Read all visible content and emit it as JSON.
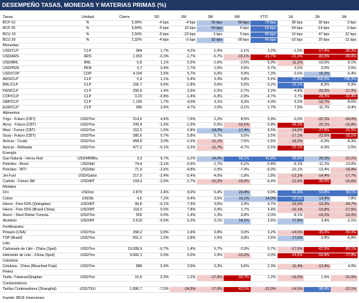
{
  "title": "DESEMPEÑO TASAS, MONEDAS Y MATERIAS PRIMAS (%)",
  "headers": [
    "",
    "Unidad",
    "Cierre",
    "5D",
    "1M",
    "3M",
    "6M",
    "YTD",
    "1A",
    "2A",
    "3A"
  ],
  "source": "Fuente: BICE Inversiones",
  "colors": {
    "title_bg": "#1f3864",
    "pos_strong": "#4472c4",
    "pos_soft": "#b4c6e7",
    "neg_strong": "#c00000",
    "neg_soft": "#f4cccc"
  },
  "sections": [
    {
      "name": "Tasas",
      "rows": [
        {
          "name": "BCP 10",
          "unit": "%",
          "close": "5,99%",
          "v": [
            "-4 bps",
            "-4 bps",
            "35 bps",
            "90 bps",
            "79 bps",
            "38 bps",
            "39 bps",
            "3 bps"
          ],
          "c": [
            "",
            "",
            "ps",
            "ps",
            "pS",
            "",
            "",
            ""
          ]
        },
        {
          "name": "BCP 20",
          "unit": "%",
          "close": "5,84%",
          "v": [
            "-5 bps",
            "10 bps",
            "64 bps",
            "6 bps",
            "60 bps",
            "64 bps",
            "-14 bps",
            "-3 bps"
          ],
          "c": [
            "",
            "",
            "ps",
            "",
            "pS",
            "",
            "",
            ""
          ]
        },
        {
          "name": "BCU 10",
          "unit": "%",
          "close": "2,50%",
          "v": [
            "-5 bps",
            "-23 bps",
            "3 bps",
            "5 bps",
            "66 bps",
            "10 bps",
            "47 bps",
            "22 bps"
          ],
          "c": [
            "",
            "",
            "",
            "",
            "pS",
            "",
            "",
            ""
          ]
        },
        {
          "name": "BCU 20",
          "unit": "%",
          "close": "2,32%",
          "v": [
            "-4 bps",
            "-5 bps",
            "32 bps",
            "-28 bps",
            "46 bps",
            "-10 bps",
            "29 bps",
            "-11 bps"
          ],
          "c": [
            "",
            "",
            "ps",
            "",
            "pS",
            "",
            "",
            ""
          ]
        }
      ]
    },
    {
      "name": "Monedas",
      "rows": [
        {
          "name": "USD/CLP",
          "unit": "CLP",
          "close": "964",
          "v": [
            "1,7%",
            "4,2%",
            "-1,6%",
            "-2,1%",
            "3,2%",
            "-1,0%",
            "-17,4%",
            "-36,3%"
          ],
          "c": [
            "",
            "",
            "",
            "",
            "",
            "",
            "nS",
            "nS"
          ]
        },
        {
          "name": "USD/ARS",
          "unit": "ARS",
          "close": "1.053",
          "v": [
            "-0,3%",
            "-1,7%",
            "-5,7%",
            "-15,1%",
            "-21,7%",
            "-21,2%",
            "-82,0%",
            "-90,0%"
          ],
          "c": [
            "",
            "",
            "",
            "ns",
            "nS",
            "nS",
            "nS",
            "nS"
          ]
        },
        {
          "name": "USD/BRL",
          "unit": "BRL",
          "close": "5,8",
          "v": [
            "1,1%",
            "5,5%",
            "-1,6%",
            "-2,6%",
            "6,9%",
            "-11,2%",
            "-10,0%",
            "-9,1%"
          ],
          "c": [
            "",
            "",
            "",
            "",
            "",
            "ns",
            "",
            ""
          ]
        },
        {
          "name": "USD/PEN",
          "unit": "PEN",
          "close": "3,7",
          "v": [
            "0,4%",
            "1,7%",
            "1,0%",
            "0,6%",
            "0,7%",
            "3,5%",
            "3,5%",
            "3,5%"
          ],
          "c": [
            "",
            "",
            "",
            "",
            "",
            "",
            "",
            ""
          ]
        },
        {
          "name": "USD/COP",
          "unit": "COP",
          "close": "4.104",
          "v": [
            "2,6%",
            "5,7%",
            "5,0%",
            "0,9%",
            "7,3%",
            "-3,6%",
            "15,2%",
            "-5,4%"
          ],
          "c": [
            "",
            "",
            "",
            "",
            "",
            "",
            "ps",
            ""
          ]
        },
        {
          "name": "ARS/CLP",
          "unit": "CLP",
          "close": "0,9",
          "v": [
            "1,1%",
            "5,4%",
            "3,3%",
            "9,8%",
            "5,4%",
            "25,0%",
            "356,5%",
            "748,3%"
          ],
          "c": [
            "",
            "",
            "",
            "",
            "",
            "pS",
            "pS",
            "pS"
          ]
        },
        {
          "name": "BRL/CLP",
          "unit": "CLP",
          "close": "166,7",
          "v": [
            "0,6%",
            "-1,8%",
            "0,0%",
            "5,5%",
            "-3,2%",
            "15,1%",
            "-8,3%",
            "-5,9%"
          ],
          "c": [
            "",
            "",
            "",
            "",
            "",
            "pS",
            "",
            ""
          ]
        },
        {
          "name": "PEN/CLP",
          "unit": "CLP",
          "close": "256,6",
          "v": [
            "1,4%",
            "2,5%",
            "-2,5%",
            "-2,7%",
            "2,2%",
            "-4,4%",
            "-20,2%",
            "-17,2%"
          ],
          "c": [
            "",
            "",
            "",
            "",
            "",
            "",
            "ns",
            "ns"
          ]
        },
        {
          "name": "COP/CLP",
          "unit": "CLP",
          "close": "0,23",
          "v": [
            "-0,8%",
            "-1,4%",
            "-6,3%",
            "-2,9%",
            "-3,7%",
            "2,7%",
            "-28,3%",
            "-31,4%"
          ],
          "c": [
            "",
            "",
            "",
            "",
            "",
            "",
            "nS",
            "nS"
          ]
        },
        {
          "name": "GBP/CLP",
          "unit": "CLP",
          "close": "1.195",
          "v": [
            "1,7%",
            "4,0%",
            "3,1%",
            "0,3%",
            "4,3%",
            "6,3%",
            "-19,7%",
            "-8,6%"
          ],
          "c": [
            "",
            "",
            "",
            "",
            "",
            "",
            "ns",
            ""
          ]
        },
        {
          "name": "EUR/CLP",
          "unit": "CLP",
          "close": "996",
          "v": [
            "2,4%",
            "4,7%",
            "2,5%",
            "-3,1%",
            "1,7%",
            "7,5%",
            "-11,7%",
            "-9,4%"
          ],
          "c": [
            "",
            "",
            "",
            "",
            "",
            "",
            "",
            ""
          ]
        }
      ]
    },
    {
      "name": "Alimentos",
      "rows": [
        {
          "name": "Trigo - Futuro (CBT)",
          "unit": "USD/Ton",
          "close": "214,6",
          "v": [
            "4,4%",
            "7,6%",
            "2,2%",
            "8,5%",
            "5,9%",
            "-3,0%",
            "-22,1%",
            "-24,0%"
          ],
          "c": [
            "",
            "",
            "",
            "",
            "",
            "",
            "ns",
            "ns"
          ]
        },
        {
          "name": "Arroz - Futuro (CBT)",
          "unit": "USD/Ton",
          "close": "243,4",
          "v": [
            "-1,6%",
            "-1,5%",
            "-5,5%",
            "-10,1%",
            "-2,8%",
            "-26,3%",
            "-22,1%",
            "-15,8%"
          ],
          "c": [
            "",
            "",
            "",
            "ns",
            "",
            "nS",
            "ns",
            "ns"
          ]
        },
        {
          "name": "Maíz - Futuro (CBT)",
          "unit": "USD/Ton",
          "close": "152,2",
          "v": [
            "1,6%",
            "6,8%",
            "14,2%",
            "17,4%",
            "6,5%",
            "-14,9%",
            "-27,8%",
            "-31,5%"
          ],
          "c": [
            "",
            "",
            "ps",
            "ps",
            "",
            "ns",
            "nS",
            "nS"
          ]
        },
        {
          "name": "Soya - Futuro (CBT)",
          "unit": "USD/Ton",
          "close": "385,6",
          "v": [
            "0,7%",
            "5,8%",
            "5,7%",
            "5,6%",
            "3,5%",
            "-17,1%",
            "-22,6%",
            "-33,1%"
          ],
          "c": [
            "",
            "",
            "",
            "",
            "",
            "ns",
            "ns",
            "nS"
          ]
        },
        {
          "name": "Azúcar - Crudo",
          "unit": "USD/Ton",
          "close": "458,8",
          "v": [
            "3,0%",
            "-1,5%",
            "-11,1%",
            "-7,5%",
            "-1,5%",
            "-18,2%",
            "-6,3%",
            "-8,3%"
          ],
          "c": [
            "",
            "",
            "ns",
            "",
            "",
            "ns",
            "",
            ""
          ]
        },
        {
          "name": "Azúcar - Refinada",
          "unit": "USD/Ton",
          "close": "477,2",
          "v": [
            "-0,1%",
            "-3,3%",
            "-11,7%",
            "-4,7%",
            "-2,5%",
            "-23,1%",
            "-6,0%",
            "0,5%"
          ],
          "c": [
            "",
            "",
            "ns",
            "",
            "",
            "nS",
            "",
            ""
          ]
        }
      ]
    },
    {
      "name": "Energía",
      "rows": [
        {
          "name": "Gas Natural - Henry Hub",
          "unit": "USD/MMBtu",
          "close": "3,3",
          "v": [
            "9,7%",
            "-3,2%",
            "24,0%",
            "58,1%",
            "41,8%",
            "89,8%",
            "29,3%",
            "-21,1%"
          ],
          "c": [
            "",
            "",
            "ps",
            "pS",
            "pS",
            "pS",
            "ps",
            "ns"
          ]
        },
        {
          "name": "Petróleo - Brent",
          "unit": "USD/bbl",
          "close": "74,4",
          "v": [
            "-3,1%",
            "-3,5%",
            "-1,7%",
            "-5,1%",
            "-0,4%",
            "-6,1%",
            "-11,1%",
            "-13,0%"
          ],
          "c": [
            "",
            "",
            "",
            "",
            "",
            "",
            "",
            ""
          ]
        },
        {
          "name": "Petróleo - WTI",
          "unit": "USD/bbl",
          "close": "71,0",
          "v": [
            "-2,6%",
            "-4,8%",
            "-2,0%",
            "-7,4%",
            "-0,9%",
            "-10,1%",
            "-13,4%",
            "-16,9%"
          ],
          "c": [
            "",
            "",
            "",
            "",
            "",
            "",
            "",
            "ns"
          ]
        },
        {
          "name": "Jet Fuel",
          "unit": "USD/Galón",
          "close": "217,0",
          "v": [
            "-2,4%",
            "-5,4%",
            "-4,0%",
            "-1,8%",
            "1,8%",
            "-12,1%",
            "-14,4%",
            "-17,7%"
          ],
          "c": [
            "",
            "",
            "",
            "",
            "",
            "ns",
            "ns",
            "ns"
          ]
        },
        {
          "name": "Carbón - Futuro 3M",
          "unit": "USD/MT",
          "close": "104,3",
          "v": [
            "-3,9%",
            "-1,7%",
            "-15,2%",
            "-15,0%",
            "-6,4%",
            "-12,9%",
            "-39,0%",
            "-15,6%"
          ],
          "c": [
            "",
            "",
            "ns",
            "ns",
            "",
            "ns",
            "nS",
            "ns"
          ]
        }
      ]
    },
    {
      "name": "Metales",
      "rows": [
        {
          "name": "Oro",
          "unit": "USD/oz",
          "close": "2.879",
          "v": [
            "2,4%",
            "8,0%",
            "6,4%",
            "20,4%",
            "9,0%",
            "41,4%",
            "53,8%",
            "58,1%"
          ],
          "c": [
            "",
            "",
            "",
            "ps",
            "",
            "pS",
            "pS",
            "pS"
          ]
        },
        {
          "name": "Cobre",
          "unit": "USD/lb",
          "close": "4,6",
          "v": [
            "7,2%",
            "9,4%",
            "3,5%",
            "16,1%",
            "14,0%",
            "22,6%",
            "13,4%",
            "7,8%"
          ],
          "c": [
            "",
            "",
            "",
            "ps",
            "ps",
            "pS",
            "ps",
            ""
          ]
        },
        {
          "name": "Hierro - Fino 62% (Qningdao)",
          "unit": "USD/MT",
          "close": "99,8",
          "v": [
            "-0,1%",
            "7,9%",
            "3,6%",
            "2,0%",
            "4,7%",
            "-19,5%",
            "-19,3%",
            "-24,7%"
          ],
          "c": [
            "",
            "",
            "",
            "",
            "",
            "ns",
            "ns",
            "ns"
          ]
        },
        {
          "name": "Hierro - Fino 65% (Brasil-China)",
          "unit": "USD/MT",
          "close": "118,0",
          "v": [
            "0,5%",
            "7,8%",
            "0,9%",
            "1,7%",
            "4,4%",
            "-15,1%",
            "-19,8%",
            "-17,5%"
          ],
          "c": [
            "",
            "",
            "",
            "",
            "",
            "ns",
            "ns",
            "ns"
          ]
        },
        {
          "name": "Acero - Steel Rebar Turquía",
          "unit": "USD/Ton",
          "close": "565",
          "v": [
            "0,0%",
            "1,4%",
            "1,3%",
            "-3,8%",
            "-2,0%",
            "-8,1%",
            "-19,2%",
            "-15,0%"
          ],
          "c": [
            "",
            "",
            "",
            "",
            "",
            "",
            "ns",
            "ns"
          ]
        },
        {
          "name": "Aluminio",
          "unit": "USD/MT",
          "close": "2.619",
          "v": [
            "-0,5%",
            "5,2%",
            "0,1%",
            "14,1%",
            "2,6%",
            "17,8%",
            "3,4%",
            "-2,1%"
          ],
          "c": [
            "",
            "",
            "",
            "ps",
            "",
            "ps",
            "",
            ""
          ]
        }
      ]
    },
    {
      "name": "Fertilizantes",
      "rows": [
        {
          "name": "Potasio (USA)",
          "unit": "USD/Ton",
          "close": "358,2",
          "v": [
            "0,8%",
            "2,4%",
            "0,8%",
            "0,0%",
            "3,2%",
            "-14,5%",
            "-39,0%",
            "-55,9%"
          ],
          "c": [
            "",
            "",
            "",
            "",
            "",
            "ns",
            "nS",
            "nS"
          ]
        },
        {
          "name": "TSP (Brasil)",
          "unit": "USD/Ton",
          "close": "551,2",
          "v": [
            "1,5%",
            "2,8%",
            "1,5%",
            "-3,8%",
            "2,6%",
            "17,0%",
            "-3,8%",
            "-6,8%"
          ],
          "c": [
            "",
            "",
            "",
            "",
            "",
            "ps",
            "",
            ""
          ]
        }
      ]
    },
    {
      "name": "Litio",
      "rows": [
        {
          "name": "Carbonato de Litio - China (Spot)",
          "unit": "USD/Ton",
          "close": "10.008,9",
          "v": [
            "-0,7%",
            "1,4%",
            "0,7%",
            "-2,0%",
            "0,7%",
            "-17,5%",
            "-62,9%",
            "-80,1%"
          ],
          "c": [
            "",
            "",
            "",
            "",
            "",
            "ns",
            "nS",
            "nS"
          ]
        },
        {
          "name": "Hidróxido de Litio - China (Spot)",
          "unit": "USD/Ton",
          "close": "9.666,1",
          "v": [
            "0,0%",
            "0,0%",
            "2,9%",
            "-10,2%",
            "0,0%",
            "-24,5%",
            "-64,8%",
            "-77,8%"
          ],
          "c": [
            "",
            "",
            "",
            "ns",
            "",
            "nS",
            "nS",
            "nS"
          ]
        }
      ]
    },
    {
      "name": "Celulosa",
      "rows": [
        {
          "name": "Celulosa - China (Bleached Pulp)",
          "unit": "USD/Ton",
          "close": "888",
          "v": [
            "0,9%",
            "3,5%",
            "3,3%",
            "5,6%",
            "2,3%",
            "-11,4%",
            "-12,4%",
            "4,0%"
          ],
          "c": [
            "",
            "",
            "",
            "",
            "",
            "ns",
            "ns",
            ""
          ]
        }
      ]
    },
    {
      "name": "Fletes",
      "rows": [
        {
          "name": "Tarifa -Tubarao/Qingdao",
          "unit": "USD/Ton",
          "close": "15,6",
          "v": [
            "0,3%",
            "1,2%",
            "-17,9%",
            "-30,7%",
            "1,2%",
            "-19,5%",
            "1,5%",
            "-21,5%"
          ],
          "c": [
            "",
            "",
            "ns",
            "nS",
            "",
            "ns",
            "",
            "ns"
          ]
        }
      ]
    },
    {
      "name": "Contenedores",
      "rows": [
        {
          "name": "Tarifas Contenedores (Shanghái)",
          "unit": "USD/TEU",
          "close": "1.896,7",
          "v": [
            "-7,5%",
            "-24,3%",
            "-17,0%",
            "-43,1%",
            "-22,0%",
            "-14,5%",
            "88,4%",
            "-22,1%"
          ],
          "c": [
            "",
            "ns",
            "ns",
            "nS",
            "ns",
            "ns",
            "pS",
            "ns"
          ]
        }
      ]
    }
  ]
}
